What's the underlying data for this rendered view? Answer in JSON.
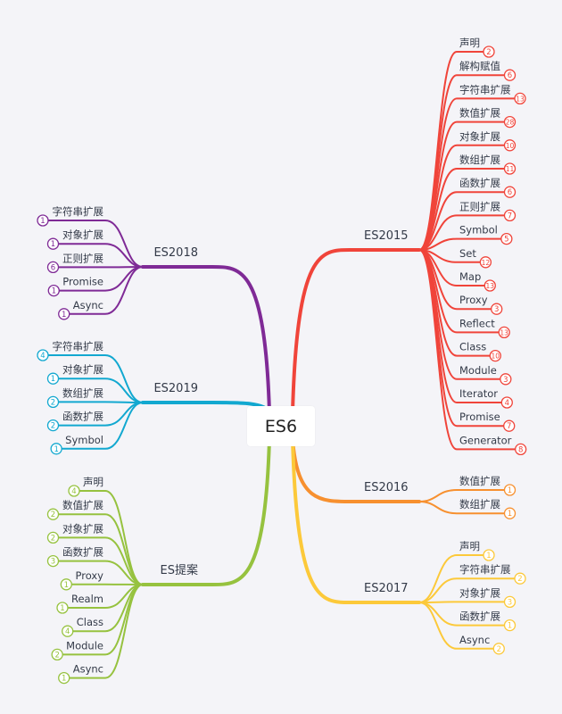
{
  "root": {
    "label": "ES6"
  },
  "branches": [
    {
      "label": "ES2015",
      "side": "right",
      "color": "#f0443a",
      "leaves": [
        {
          "label": "声明",
          "count": "2"
        },
        {
          "label": "解构赋值",
          "count": "6"
        },
        {
          "label": "字符串扩展",
          "count": "13"
        },
        {
          "label": "数值扩展",
          "count": "28"
        },
        {
          "label": "对象扩展",
          "count": "10"
        },
        {
          "label": "数组扩展",
          "count": "11"
        },
        {
          "label": "函数扩展",
          "count": "6"
        },
        {
          "label": "正则扩展",
          "count": "7"
        },
        {
          "label": "Symbol",
          "count": "5"
        },
        {
          "label": "Set",
          "count": "12"
        },
        {
          "label": "Map",
          "count": "13"
        },
        {
          "label": "Proxy",
          "count": "3"
        },
        {
          "label": "Reflect",
          "count": "13"
        },
        {
          "label": "Class",
          "count": "10"
        },
        {
          "label": "Module",
          "count": "3"
        },
        {
          "label": "Iterator",
          "count": "4"
        },
        {
          "label": "Promise",
          "count": "7"
        },
        {
          "label": "Generator",
          "count": "8"
        }
      ]
    },
    {
      "label": "ES2016",
      "side": "right",
      "color": "#f7902f",
      "leaves": [
        {
          "label": "数值扩展",
          "count": "1"
        },
        {
          "label": "数组扩展",
          "count": "1"
        }
      ]
    },
    {
      "label": "ES2017",
      "side": "right",
      "color": "#fcc93a",
      "leaves": [
        {
          "label": "声明",
          "count": "1"
        },
        {
          "label": "字符串扩展",
          "count": "2"
        },
        {
          "label": "对象扩展",
          "count": "3"
        },
        {
          "label": "函数扩展",
          "count": "1"
        },
        {
          "label": "Async",
          "count": "2"
        }
      ]
    },
    {
      "label": "ES2018",
      "side": "left",
      "color": "#7f2a96",
      "leaves": [
        {
          "label": "字符串扩展",
          "count": "1"
        },
        {
          "label": "对象扩展",
          "count": "1"
        },
        {
          "label": "正则扩展",
          "count": "6"
        },
        {
          "label": "Promise",
          "count": "1"
        },
        {
          "label": "Async",
          "count": "1"
        }
      ]
    },
    {
      "label": "ES2019",
      "side": "left",
      "color": "#12a8d0",
      "leaves": [
        {
          "label": "字符串扩展",
          "count": "4"
        },
        {
          "label": "对象扩展",
          "count": "1"
        },
        {
          "label": "数组扩展",
          "count": "2"
        },
        {
          "label": "函数扩展",
          "count": "2"
        },
        {
          "label": "Symbol",
          "count": "1"
        }
      ]
    },
    {
      "label": "ES提案",
      "side": "left",
      "color": "#96c23f",
      "leaves": [
        {
          "label": "声明",
          "count": "4"
        },
        {
          "label": "数值扩展",
          "count": "2"
        },
        {
          "label": "对象扩展",
          "count": "2"
        },
        {
          "label": "函数扩展",
          "count": "3"
        },
        {
          "label": "Proxy",
          "count": "1"
        },
        {
          "label": "Realm",
          "count": "1"
        },
        {
          "label": "Class",
          "count": "4"
        },
        {
          "label": "Module",
          "count": "2"
        },
        {
          "label": "Async",
          "count": "1"
        }
      ]
    }
  ]
}
